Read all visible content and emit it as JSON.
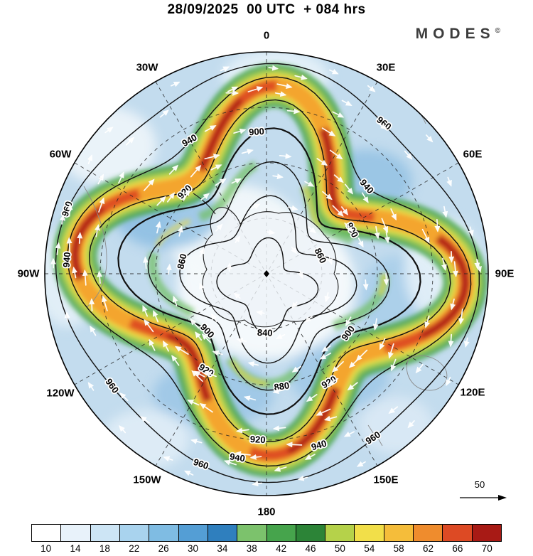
{
  "header": {
    "title": "28/09/2025  00 UTC  + 084 hrs",
    "brand": "MODES",
    "brand_mark": "©"
  },
  "map": {
    "longitude_labels": [
      {
        "text": "0",
        "angle": 0
      },
      {
        "text": "30E",
        "angle": 30
      },
      {
        "text": "60E",
        "angle": 60
      },
      {
        "text": "90E",
        "angle": 90
      },
      {
        "text": "120E",
        "angle": 120
      },
      {
        "text": "150E",
        "angle": 150
      },
      {
        "text": "180",
        "angle": 180
      },
      {
        "text": "150W",
        "angle": 210
      },
      {
        "text": "120W",
        "angle": 240
      },
      {
        "text": "90W",
        "angle": 270
      },
      {
        "text": "60W",
        "angle": 300
      },
      {
        "text": "30W",
        "angle": 330
      }
    ],
    "contour_labels": [
      {
        "level": "940",
        "angle": 240
      },
      {
        "level": "940",
        "angle": 319
      },
      {
        "level": "940",
        "angle": 184
      },
      {
        "level": "940",
        "angle": 99
      },
      {
        "level": "940",
        "angle": 73
      },
      {
        "level": "960",
        "angle": 308
      },
      {
        "level": "960",
        "angle": 198
      },
      {
        "level": "960",
        "angle": 144
      },
      {
        "level": "960",
        "angle": 109
      },
      {
        "level": "960",
        "angle": 57
      },
      {
        "level": "920",
        "angle": 225
      },
      {
        "level": "920",
        "angle": 122
      },
      {
        "level": "920",
        "angle": 60
      },
      {
        "level": "920",
        "angle": 93
      },
      {
        "level": "900",
        "angle": 266
      },
      {
        "level": "900",
        "angle": 136
      },
      {
        "level": "900",
        "angle": 36
      },
      {
        "level": "900",
        "angle": 333
      },
      {
        "level": "880",
        "angle": 82
      },
      {
        "level": "860",
        "angle": 193
      },
      {
        "level": "860",
        "angle": 335
      },
      {
        "level": "840",
        "angle": 92
      }
    ]
  },
  "colorbar": {
    "ticks": [
      "10",
      "14",
      "18",
      "22",
      "26",
      "30",
      "34",
      "38",
      "42",
      "46",
      "50",
      "54",
      "58",
      "62",
      "66",
      "70"
    ],
    "colors": [
      "#ffffff",
      "#e8f2fa",
      "#cde5f5",
      "#a9d3ee",
      "#7fbce3",
      "#549ed5",
      "#2f7fbe",
      "#7cc26c",
      "#46a44c",
      "#2c8437",
      "#b5d24a",
      "#f2df49",
      "#f5bd3a",
      "#ef8c2d",
      "#dd4a24",
      "#a81a15"
    ]
  },
  "scale_arrow": {
    "label": "50"
  },
  "chart_data": {
    "type": "heatmap",
    "title": "28/09/2025 00 UTC + 084 hrs",
    "valid_time": "28/09/2025 00 UTC",
    "lead_hours": 84,
    "projection": "south polar stereographic (Antarctica at center)",
    "shaded_field": {
      "name": "wind speed",
      "tick_values": [
        10,
        14,
        18,
        22,
        26,
        30,
        34,
        38,
        42,
        46,
        50,
        54,
        58,
        62,
        66,
        70
      ],
      "palette": [
        "#ffffff",
        "#e8f2fa",
        "#cde5f5",
        "#a9d3ee",
        "#7fbce3",
        "#549ed5",
        "#2f7fbe",
        "#7cc26c",
        "#46a44c",
        "#2c8437",
        "#b5d24a",
        "#f2df49",
        "#f5bd3a",
        "#ef8c2d",
        "#dd4a24",
        "#a81a15"
      ]
    },
    "contours": {
      "name": "geopotential height",
      "levels": [
        840,
        860,
        880,
        900,
        920,
        940,
        960
      ],
      "interval": 20
    },
    "vectors": {
      "symbol": "white arrows",
      "direction": "westerly flow, clockwise around the pole",
      "reference_value": 50
    },
    "longitude_ring": [
      "0",
      "30E",
      "60E",
      "90E",
      "120E",
      "150E",
      "180",
      "150W",
      "120W",
      "90W",
      "60W",
      "30W"
    ],
    "legend_position": "bottom",
    "grid": "dashed graticule every 30 degrees longitude"
  }
}
